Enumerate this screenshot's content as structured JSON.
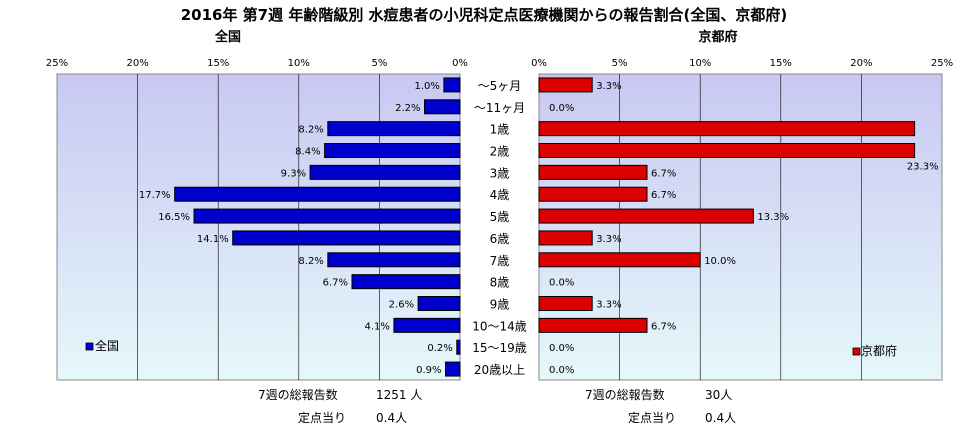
{
  "chart_data": {
    "type": "bar",
    "title": "2016年 第7週 年齢階級別 水痘患者の小児科定点医療機関からの報告割合(全国、京都府)",
    "categories": [
      "～5ヶ月",
      "～11ヶ月",
      "1歳",
      "2歳",
      "3歳",
      "4歳",
      "5歳",
      "6歳",
      "7歳",
      "8歳",
      "9歳",
      "10～14歳",
      "15～19歳",
      "20歳以上"
    ],
    "xlim": [
      0,
      25
    ],
    "xticks": [
      "0%",
      "5%",
      "10%",
      "15%",
      "20%",
      "25%"
    ],
    "left_ticks": [
      "25%",
      "20%",
      "15%",
      "10%",
      "5%",
      "0%"
    ],
    "colors": {
      "national": "#0000cc",
      "kyoto": "#dd0000",
      "plot_bg_top": "#c8c8f2",
      "plot_bg_bottom": "#e6f8fa"
    },
    "series": [
      {
        "name": "全国",
        "panel_label": "全国",
        "values": [
          1.0,
          2.2,
          8.2,
          8.4,
          9.3,
          17.7,
          16.5,
          14.1,
          8.2,
          6.7,
          2.6,
          4.1,
          0.2,
          0.9
        ],
        "labels": [
          "1.0%",
          "2.2%",
          "8.2%",
          "8.4%",
          "9.3%",
          "17.7%",
          "16.5%",
          "14.1%",
          "8.2%",
          "6.7%",
          "2.6%",
          "4.1%",
          "0.2%",
          "0.9%"
        ],
        "footer": {
          "total_label": "7週の総報告数",
          "total_value": "1251 人",
          "per_label": "定点当り",
          "per_value": "0.4人"
        }
      },
      {
        "name": "京都府",
        "panel_label": "京都府",
        "values": [
          3.3,
          0.0,
          23.3,
          23.3,
          6.7,
          6.7,
          13.3,
          3.3,
          10.0,
          0.0,
          3.3,
          6.7,
          0.0,
          0.0
        ],
        "labels": [
          "3.3%",
          "0.0%",
          "",
          "23.3%",
          "6.7%",
          "6.7%",
          "13.3%",
          "3.3%",
          "10.0%",
          "0.0%",
          "3.3%",
          "6.7%",
          "0.0%",
          "0.0%"
        ],
        "footer": {
          "total_label": "7週の総報告数",
          "total_value": "30人",
          "per_label": "定点当り",
          "per_value": "0.4人"
        }
      }
    ]
  }
}
